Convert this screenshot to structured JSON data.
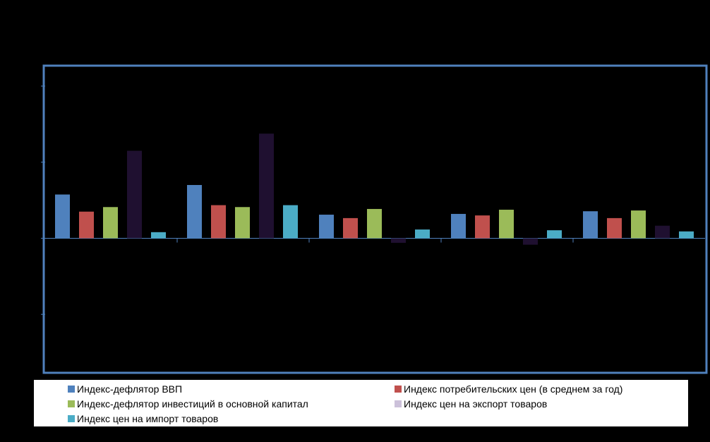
{
  "chart_data": {
    "type": "bar",
    "title": "",
    "xlabel": "",
    "ylabel": "",
    "categories": [
      "",
      "",
      "",
      "",
      ""
    ],
    "ylim": [
      -0.35,
      0.45
    ],
    "grid": false,
    "legend_position": "bottom",
    "series": [
      {
        "name": "Индекс-дефлятор ВВП",
        "color": "#4f81bd",
        "values": [
          0.115,
          0.14,
          0.062,
          0.064,
          0.071
        ]
      },
      {
        "name": "Индекс потребительских цен (в среднем за год)",
        "color": "#c0504d",
        "values": [
          0.07,
          0.087,
          0.053,
          0.06,
          0.053
        ]
      },
      {
        "name": "Индекс-дефлятор инвестиций в основной  капитал",
        "color": "#9bbb59",
        "values": [
          0.082,
          0.082,
          0.077,
          0.075,
          0.073
        ]
      },
      {
        "name": "Индекс цен на экспорт товаров",
        "color": "#1f1030",
        "values": [
          0.23,
          0.275,
          -0.012,
          -0.017,
          0.033
        ]
      },
      {
        "name": "Индекс цен на импорт товаров",
        "color": "#4bacc6",
        "values": [
          0.016,
          0.087,
          0.023,
          0.021,
          0.018
        ]
      }
    ]
  }
}
